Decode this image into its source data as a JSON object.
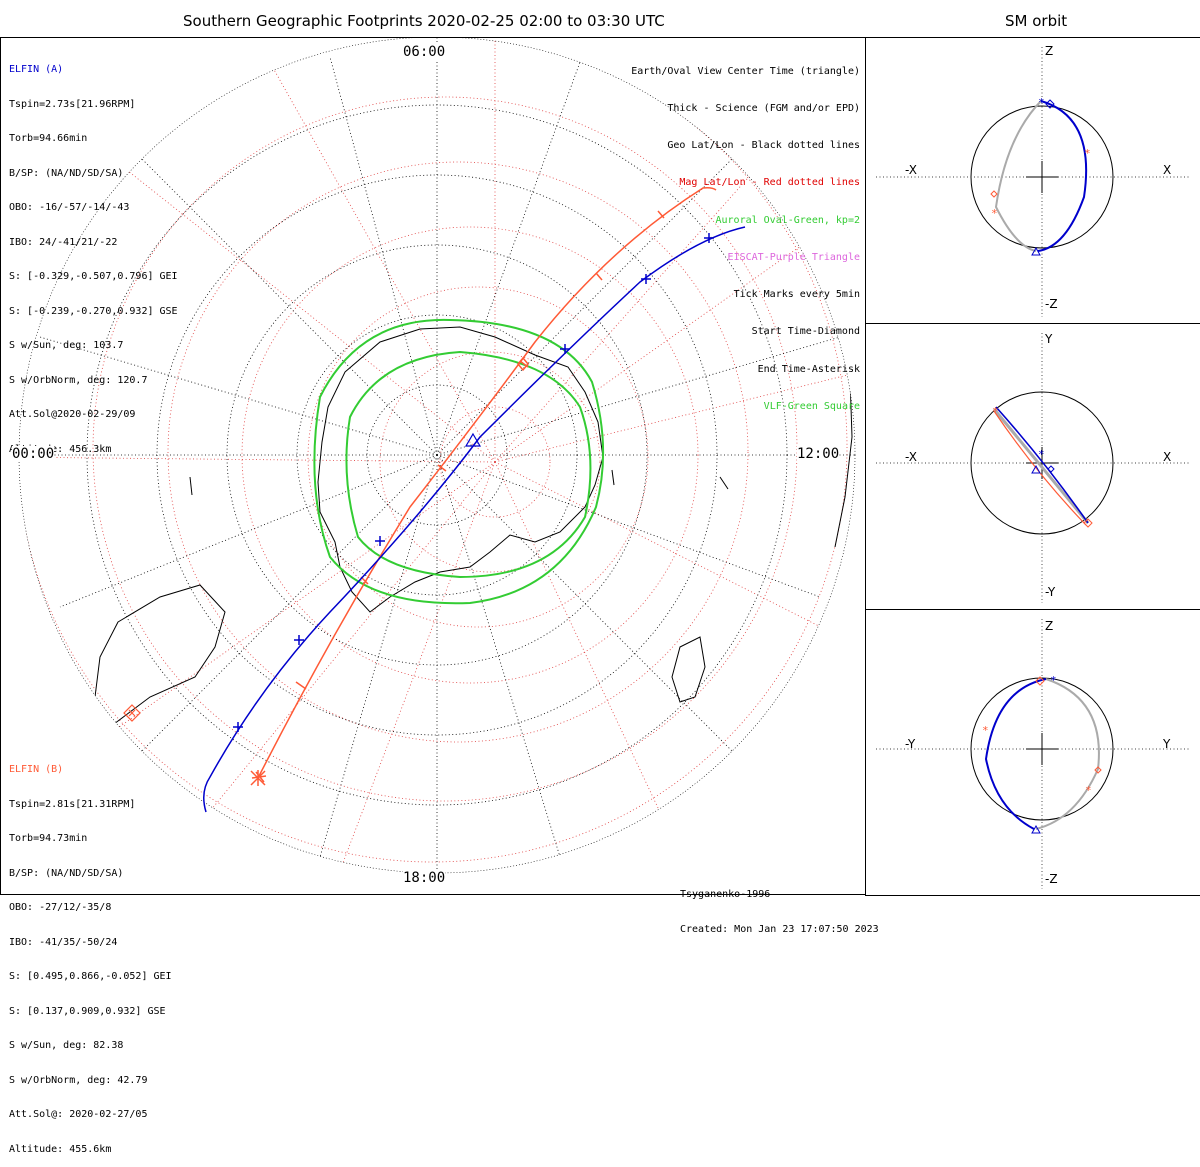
{
  "title": "Southern Geographic Footprints 2020-02-25 02:00 to 03:30 UTC",
  "side_title": "SM orbit",
  "elfin_a": {
    "name": "ELFIN (A)",
    "color": "#0000cc",
    "lines": [
      "Tspin=2.73s[21.96RPM]",
      "Torb=94.66min",
      "B/SP: (NA/ND/SD/SA)",
      "OBO: -16/-57/-14/-43",
      "IBO: 24/-41/21/-22",
      "S: [-0.329,-0.507,0.796] GEI",
      "S: [-0.239,-0.270,0.932] GSE",
      "S w/Sun, deg: 103.7",
      "S w/OrbNorm, deg: 120.7",
      "Att.Sol@2020-02-29/09",
      "Altitude: 456.3km"
    ]
  },
  "elfin_b": {
    "name": "ELFIN (B)",
    "color": "#ff5a36",
    "lines": [
      "Tspin=2.81s[21.31RPM]",
      "Torb=94.73min",
      "B/SP: (NA/ND/SD/SA)",
      "OBO: -27/12/-35/8",
      "IBO: -41/35/-50/24",
      "S: [0.495,0.866,-0.052] GEI",
      "S: [0.137,0.909,0.932] GSE",
      "S w/Sun, deg: 82.38",
      "S w/OrbNorm, deg: 42.79",
      "Att.Sol@: 2020-02-27/05",
      "Altitude: 455.6km"
    ]
  },
  "legend": [
    {
      "text": "Earth/Oval View Center Time (triangle)",
      "color": "#000000"
    },
    {
      "text": "Thick - Science (FGM and/or EPD)",
      "color": "#000000"
    },
    {
      "text": "Geo Lat/Lon - Black dotted lines",
      "color": "#000000"
    },
    {
      "text": "Mag Lat/Lon - Red dotted lines",
      "color": "#e00000"
    },
    {
      "text": "Auroral Oval-Green, kp=2",
      "color": "#33cc33"
    },
    {
      "text": "EISCAT-Purple Triangle",
      "color": "#dd66dd"
    },
    {
      "text": "Tick Marks every 5min",
      "color": "#000000"
    },
    {
      "text": "Start Time-Diamond",
      "color": "#000000"
    },
    {
      "text": "End Time-Asterisk",
      "color": "#000000"
    },
    {
      "text": "VLF-Green Square",
      "color": "#33cc33"
    }
  ],
  "mlt_labels": {
    "top": "06:00",
    "left": "00:00",
    "right": "12:00",
    "bottom": "18:00"
  },
  "credits": [
    "Tsyganenko-1996",
    "Created: Mon Jan 23 17:07:50 2023"
  ],
  "panels": [
    {
      "up": "Z",
      "down": "-Z",
      "left": "-X",
      "right": "X"
    },
    {
      "up": "Y",
      "down": "-Y",
      "left": "-X",
      "right": "X"
    },
    {
      "up": "Z",
      "down": "-Z",
      "left": "-Y",
      "right": "Y"
    }
  ]
}
